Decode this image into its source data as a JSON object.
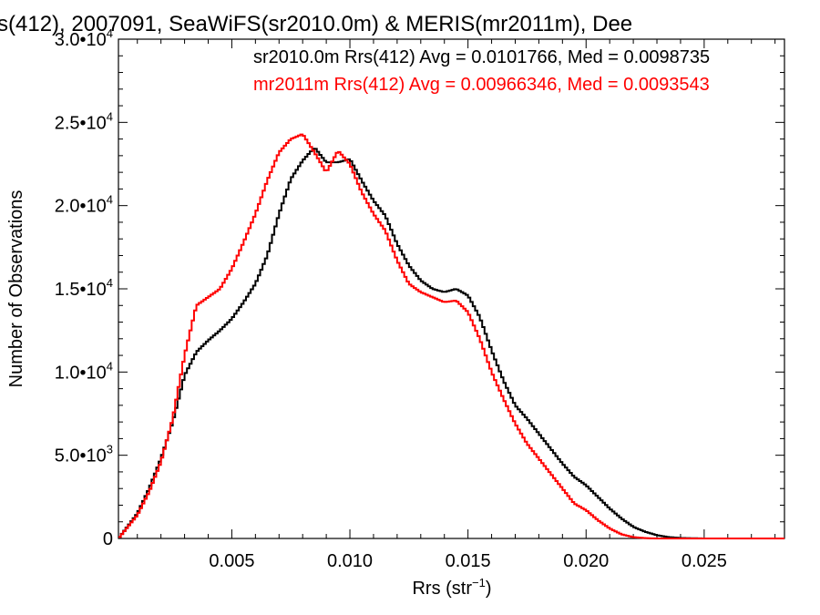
{
  "chart_data": {
    "type": "line",
    "title": "s(412), 2007091, SeaWiFS(sr2010.0m) & MERIS(mr2011m), Dee",
    "xlabel": "Rrs (str",
    "xlabel_sup": "−1",
    "xlabel_close": ")",
    "ylabel": "Number of Observations",
    "xlim": [
      0.0002,
      0.0284
    ],
    "ylim": [
      0,
      30000
    ],
    "x_ticks": [
      {
        "value": 0.005,
        "label": "0.005"
      },
      {
        "value": 0.01,
        "label": "0.010"
      },
      {
        "value": 0.015,
        "label": "0.015"
      },
      {
        "value": 0.02,
        "label": "0.020"
      },
      {
        "value": 0.025,
        "label": "0.025"
      }
    ],
    "y_ticks": [
      {
        "value": 0,
        "mant": "0",
        "exp": ""
      },
      {
        "value": 5000,
        "mant": "5.0•10",
        "exp": "3"
      },
      {
        "value": 10000,
        "mant": "1.0•10",
        "exp": "4"
      },
      {
        "value": 15000,
        "mant": "1.5•10",
        "exp": "4"
      },
      {
        "value": 20000,
        "mant": "2.0•10",
        "exp": "4"
      },
      {
        "value": 25000,
        "mant": "2.5•10",
        "exp": "4"
      },
      {
        "value": 30000,
        "mant": "3.0•10",
        "exp": "4"
      }
    ],
    "grid": false,
    "legend_position": "top-right",
    "series": [
      {
        "name": "sr2010.0m Rrs(412) Avg = 0.0101766, Med = 0.0098735",
        "color": "#000000",
        "x": [
          0.0002,
          0.001,
          0.0015,
          0.002,
          0.0025,
          0.003,
          0.0035,
          0.004,
          0.0045,
          0.005,
          0.0055,
          0.006,
          0.0065,
          0.007,
          0.0075,
          0.008,
          0.0085,
          0.009,
          0.0095,
          0.01,
          0.0105,
          0.011,
          0.0115,
          0.012,
          0.0125,
          0.013,
          0.0135,
          0.014,
          0.0145,
          0.015,
          0.0155,
          0.016,
          0.0165,
          0.017,
          0.0175,
          0.018,
          0.0185,
          0.019,
          0.0195,
          0.02,
          0.0205,
          0.021,
          0.0215,
          0.022,
          0.0225,
          0.023,
          0.0235,
          0.024,
          0.025,
          0.0284
        ],
        "y": [
          0,
          1500,
          3000,
          4800,
          7000,
          9800,
          11200,
          11900,
          12500,
          13200,
          14200,
          15300,
          17000,
          19500,
          21600,
          22700,
          23500,
          22600,
          22600,
          22800,
          21500,
          20300,
          19400,
          17700,
          16400,
          15500,
          15000,
          14800,
          15000,
          14600,
          13300,
          11300,
          9500,
          8000,
          7200,
          6300,
          5400,
          4500,
          3700,
          3200,
          2500,
          1800,
          1200,
          700,
          400,
          200,
          80,
          30,
          0,
          0
        ]
      },
      {
        "name": "mr2011m Rrs(412) Avg = 0.00966346, Med = 0.0093543",
        "color": "#ff0000",
        "x": [
          0.0002,
          0.001,
          0.0015,
          0.002,
          0.0025,
          0.003,
          0.0035,
          0.004,
          0.0045,
          0.005,
          0.0055,
          0.006,
          0.0065,
          0.007,
          0.0075,
          0.008,
          0.0085,
          0.009,
          0.0095,
          0.01,
          0.0105,
          0.011,
          0.0115,
          0.012,
          0.0125,
          0.013,
          0.0135,
          0.014,
          0.0145,
          0.015,
          0.0155,
          0.016,
          0.0165,
          0.017,
          0.0175,
          0.018,
          0.0185,
          0.019,
          0.0195,
          0.02,
          0.0205,
          0.021,
          0.0215,
          0.022,
          0.0225,
          0.023,
          0.0235,
          0.024,
          0.025,
          0.0284
        ],
        "y": [
          0,
          1400,
          2800,
          4600,
          7200,
          11000,
          14000,
          14500,
          15000,
          16200,
          17800,
          19500,
          21500,
          23200,
          24000,
          24300,
          23200,
          22000,
          23300,
          22500,
          20800,
          19500,
          18500,
          16700,
          15300,
          14800,
          14500,
          14200,
          14300,
          13600,
          12000,
          10000,
          8400,
          6900,
          5700,
          4800,
          3900,
          3000,
          2100,
          1700,
          1100,
          600,
          250,
          80,
          20,
          0,
          0,
          0,
          0,
          0
        ]
      }
    ]
  }
}
